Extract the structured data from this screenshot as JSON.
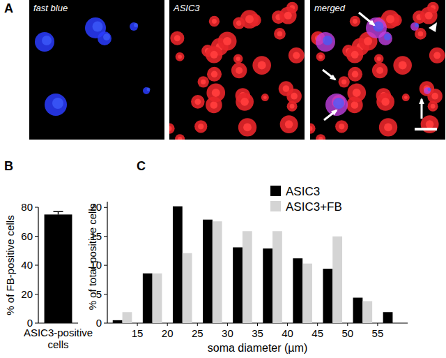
{
  "figure": {
    "panel_labels": [
      "A",
      "B",
      "C"
    ],
    "images": [
      "fast blue",
      "ASIC3",
      "merged"
    ]
  },
  "chart_data": [
    {
      "type": "bar",
      "categories": [
        "ASIC3-positive cells"
      ],
      "values": [
        75
      ],
      "errors": [
        2
      ],
      "color": "#000000",
      "ylabel": "% of FB-positive cells",
      "ylim": [
        0,
        80
      ],
      "yticks": [
        0,
        20,
        40,
        60,
        80
      ]
    },
    {
      "type": "histogram",
      "bins": [
        10,
        15,
        20,
        25,
        30,
        35,
        40,
        45,
        50,
        55,
        60
      ],
      "series": [
        {
          "name": "ASIC3",
          "color": "#000000",
          "values": [
            0.5,
            8.6,
            20.2,
            17.9,
            13.1,
            12.9,
            11.2,
            9.4,
            4.4,
            1.9
          ]
        },
        {
          "name": "ASIC3+FB",
          "color": "#d4d4d4",
          "values": [
            1.9,
            8.6,
            12.1,
            17.6,
            15.9,
            15.9,
            10.3,
            15.0,
            3.8,
            0
          ]
        }
      ],
      "xlabel": "soma diameter (µm)",
      "ylabel": "% of total-positive cells",
      "xlim": [
        10,
        60
      ],
      "xticks": [
        15,
        20,
        25,
        30,
        35,
        40,
        45,
        50,
        55
      ],
      "ylim": [
        0,
        21
      ],
      "yticks": [
        0,
        5,
        10,
        15,
        20
      ],
      "legend": "upper right"
    }
  ]
}
